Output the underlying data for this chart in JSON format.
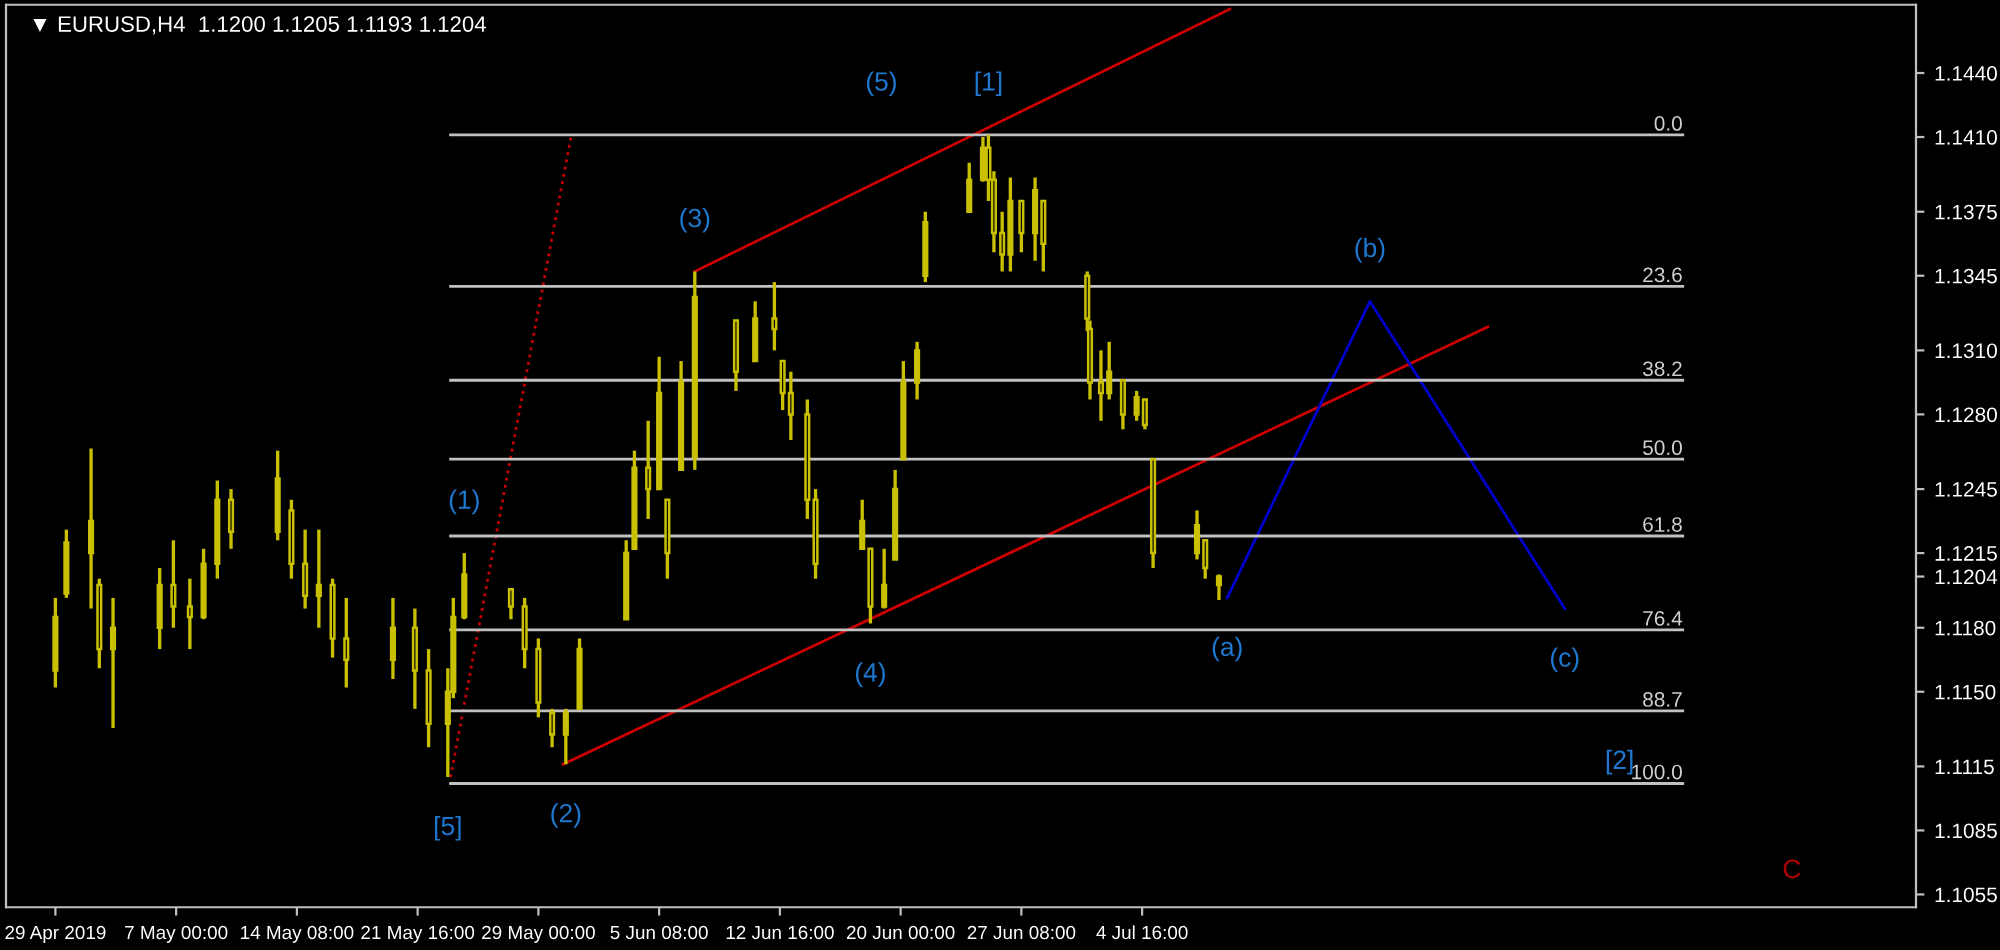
{
  "chart_data": {
    "type": "candlestick",
    "title": "▼ EURUSD,H4  1.1200 1.1205 1.1193 1.1204",
    "color": "#c8c000",
    "x": [
      "2019-04-29T16:00",
      "2019-04-30T08:00",
      "2019-05-01T20:00",
      "2019-05-02T08:00",
      "2019-05-03T04:00",
      "2019-05-06T00:00",
      "2019-05-06T20:00",
      "2019-05-07T20:00",
      "2019-05-08T16:00",
      "2019-05-09T12:00",
      "2019-05-10T08:00",
      "2019-05-13T04:00",
      "2019-05-14T00:00",
      "2019-05-14T20:00",
      "2019-05-15T16:00",
      "2019-05-16T12:00",
      "2019-05-17T08:00",
      "2019-05-20T04:00",
      "2019-05-21T12:00",
      "2019-05-22T08:00",
      "2019-05-23T12:00",
      "2019-05-23T20:00",
      "2019-05-24T12:00",
      "2019-05-27T08:00",
      "2019-05-28T04:00",
      "2019-05-29T00:00",
      "2019-05-29T20:00",
      "2019-05-30T16:00",
      "2019-05-31T12:00",
      "2019-06-03T08:00",
      "2019-06-03T20:00",
      "2019-06-04T16:00",
      "2019-06-05T08:00",
      "2019-06-05T20:00",
      "2019-06-06T16:00",
      "2019-06-07T12:00",
      "2019-06-10T00:00",
      "2019-06-11T04:00",
      "2019-06-12T08:00",
      "2019-06-12T20:00",
      "2019-06-13T08:00",
      "2019-06-14T08:00",
      "2019-06-14T20:00",
      "2019-06-17T16:00",
      "2019-06-18T04:00",
      "2019-06-19T00:00",
      "2019-06-19T16:00",
      "2019-06-20T04:00",
      "2019-06-21T00:00",
      "2019-06-21T12:00",
      "2019-06-24T04:00",
      "2019-06-25T00:00",
      "2019-06-25T08:00",
      "2019-06-25T16:00",
      "2019-06-26T04:00",
      "2019-06-26T16:00",
      "2019-06-27T08:00",
      "2019-06-28T04:00",
      "2019-06-28T16:00",
      "2019-07-01T08:00",
      "2019-07-01T12:00",
      "2019-07-02T04:00",
      "2019-07-02T16:00",
      "2019-07-03T12:00",
      "2019-07-04T08:00",
      "2019-07-04T20:00",
      "2019-07-05T08:00",
      "2019-07-08T00:00",
      "2019-07-08T12:00",
      "2019-07-09T08:00"
    ],
    "ohlc": [
      [
        1.116,
        1.1194,
        1.1152,
        1.1185
      ],
      [
        1.1196,
        1.1226,
        1.1194,
        1.122
      ],
      [
        1.1215,
        1.1264,
        1.1189,
        1.123
      ],
      [
        1.12,
        1.1203,
        1.1161,
        1.117
      ],
      [
        1.117,
        1.1194,
        1.1133,
        1.118
      ],
      [
        1.118,
        1.1208,
        1.117,
        1.12
      ],
      [
        1.12,
        1.1221,
        1.118,
        1.119
      ],
      [
        1.119,
        1.1203,
        1.117,
        1.1185
      ],
      [
        1.1185,
        1.1217,
        1.1184,
        1.121
      ],
      [
        1.121,
        1.1249,
        1.1203,
        1.124
      ],
      [
        1.124,
        1.1245,
        1.1217,
        1.1225
      ],
      [
        1.1225,
        1.1263,
        1.1221,
        1.125
      ],
      [
        1.1235,
        1.124,
        1.1203,
        1.121
      ],
      [
        1.121,
        1.1226,
        1.1189,
        1.1195
      ],
      [
        1.1195,
        1.1226,
        1.118,
        1.12
      ],
      [
        1.12,
        1.1203,
        1.1166,
        1.1175
      ],
      [
        1.1175,
        1.1194,
        1.1152,
        1.1165
      ],
      [
        1.1165,
        1.1194,
        1.1156,
        1.118
      ],
      [
        1.118,
        1.1189,
        1.1142,
        1.116
      ],
      [
        1.116,
        1.117,
        1.1124,
        1.1135
      ],
      [
        1.1135,
        1.1161,
        1.111,
        1.115
      ],
      [
        1.115,
        1.1194,
        1.1147,
        1.1185
      ],
      [
        1.1185,
        1.1215,
        1.1184,
        1.1205
      ],
      [
        1.1198,
        1.1198,
        1.1184,
        1.119
      ],
      [
        1.119,
        1.1194,
        1.1161,
        1.117
      ],
      [
        1.117,
        1.1175,
        1.1138,
        1.1145
      ],
      [
        1.114,
        1.1142,
        1.1124,
        1.113
      ],
      [
        1.113,
        1.1142,
        1.1116,
        1.114
      ],
      [
        1.1142,
        1.1175,
        1.1142,
        1.117
      ],
      [
        1.1184,
        1.1221,
        1.1184,
        1.1215
      ],
      [
        1.1217,
        1.1263,
        1.1217,
        1.1255
      ],
      [
        1.1255,
        1.1277,
        1.1231,
        1.1245
      ],
      [
        1.1245,
        1.1307,
        1.1245,
        1.129
      ],
      [
        1.124,
        1.124,
        1.1203,
        1.1215
      ],
      [
        1.1254,
        1.1305,
        1.1254,
        1.1295
      ],
      [
        1.126,
        1.1347,
        1.1254,
        1.1335
      ],
      [
        1.1324,
        1.1324,
        1.1291,
        1.13
      ],
      [
        1.1305,
        1.1333,
        1.1305,
        1.1325
      ],
      [
        1.1325,
        1.1342,
        1.131,
        1.132
      ],
      [
        1.1305,
        1.1305,
        1.1282,
        1.129
      ],
      [
        1.129,
        1.13,
        1.1268,
        1.128
      ],
      [
        1.128,
        1.1287,
        1.1231,
        1.124
      ],
      [
        1.124,
        1.1245,
        1.1203,
        1.121
      ],
      [
        1.1217,
        1.124,
        1.1217,
        1.123
      ],
      [
        1.1217,
        1.1217,
        1.1182,
        1.119
      ],
      [
        1.119,
        1.1217,
        1.1189,
        1.12
      ],
      [
        1.1212,
        1.1254,
        1.1212,
        1.1245
      ],
      [
        1.1259,
        1.1305,
        1.1259,
        1.1295
      ],
      [
        1.1295,
        1.1314,
        1.1287,
        1.131
      ],
      [
        1.1345,
        1.1375,
        1.1342,
        1.137
      ],
      [
        1.1375,
        1.1398,
        1.1375,
        1.139
      ],
      [
        1.139,
        1.141,
        1.1389,
        1.1405
      ],
      [
        1.1405,
        1.1411,
        1.138,
        1.139
      ],
      [
        1.139,
        1.1394,
        1.1356,
        1.1365
      ],
      [
        1.1365,
        1.1375,
        1.1347,
        1.1355
      ],
      [
        1.1355,
        1.1391,
        1.1347,
        1.138
      ],
      [
        1.138,
        1.138,
        1.1356,
        1.1365
      ],
      [
        1.1365,
        1.1391,
        1.1352,
        1.1385
      ],
      [
        1.138,
        1.138,
        1.1347,
        1.136
      ],
      [
        1.1345,
        1.1347,
        1.1319,
        1.1325
      ],
      [
        1.132,
        1.1324,
        1.1287,
        1.1295
      ],
      [
        1.1295,
        1.131,
        1.1277,
        1.129
      ],
      [
        1.129,
        1.1314,
        1.1287,
        1.13
      ],
      [
        1.1296,
        1.1296,
        1.1273,
        1.128
      ],
      [
        1.128,
        1.1291,
        1.1277,
        1.1288
      ],
      [
        1.1287,
        1.1287,
        1.1273,
        1.1275
      ],
      [
        1.1259,
        1.1259,
        1.1208,
        1.1215
      ],
      [
        1.1215,
        1.1235,
        1.1212,
        1.1228
      ],
      [
        1.1221,
        1.1221,
        1.1203,
        1.1208
      ],
      [
        1.12,
        1.1205,
        1.1193,
        1.1204
      ]
    ],
    "series": [
      {
        "type": "line",
        "color": "#cc0000",
        "line_style": "solid",
        "x": [
          "2019-06-07T12:00",
          "2019-07-10T00:00"
        ],
        "values": [
          1.1347,
          1.147
        ]
      },
      {
        "type": "line",
        "color": "#cc0000",
        "line_style": "solid",
        "x": [
          "2019-05-30T12:00",
          "2019-07-25T16:00"
        ],
        "values": [
          1.1116,
          1.1321
        ]
      },
      {
        "type": "line",
        "color": "#cc0000",
        "line_style": "dotted",
        "x": [
          "2019-05-23T16:00",
          "2019-05-31T00:00"
        ],
        "values": [
          1.111,
          1.1411
        ]
      },
      {
        "type": "line",
        "color": "#0000cc",
        "line_style": "solid",
        "x": [
          "2019-07-09T20:00",
          "2019-07-18T12:00",
          "2019-07-30T08:00"
        ],
        "values": [
          1.1194,
          1.1333,
          1.1189
        ]
      },
      {
        "type": "line",
        "name": "0.0",
        "color": "#c0c0c0",
        "line_style": "solid",
        "x": [
          "2019-05-23T16:00",
          "2019-08-06T12:00"
        ],
        "values": [
          1.1411,
          1.1411
        ]
      },
      {
        "type": "line",
        "name": "23.6",
        "color": "#c0c0c0",
        "line_style": "solid",
        "x": [
          "2019-05-23T16:00",
          "2019-08-06T12:00"
        ],
        "values": [
          1.134,
          1.134
        ]
      },
      {
        "type": "line",
        "name": "38.2",
        "color": "#c0c0c0",
        "line_style": "solid",
        "x": [
          "2019-05-23T16:00",
          "2019-08-06T12:00"
        ],
        "values": [
          1.1296,
          1.1296
        ]
      },
      {
        "type": "line",
        "name": "50.0",
        "color": "#c0c0c0",
        "line_style": "solid",
        "x": [
          "2019-05-23T16:00",
          "2019-08-06T12:00"
        ],
        "values": [
          1.1259,
          1.1259
        ]
      },
      {
        "type": "line",
        "name": "61.8",
        "color": "#c0c0c0",
        "line_style": "solid",
        "x": [
          "2019-05-23T16:00",
          "2019-08-06T12:00"
        ],
        "values": [
          1.1223,
          1.1223
        ]
      },
      {
        "type": "line",
        "name": "76.4",
        "color": "#c0c0c0",
        "line_style": "solid",
        "x": [
          "2019-05-23T16:00",
          "2019-08-06T12:00"
        ],
        "values": [
          1.1179,
          1.1179
        ]
      },
      {
        "type": "line",
        "name": "88.7",
        "color": "#c0c0c0",
        "line_style": "solid",
        "x": [
          "2019-05-23T16:00",
          "2019-08-06T12:00"
        ],
        "values": [
          1.1141,
          1.1141
        ]
      },
      {
        "type": "line",
        "name": "100.0",
        "color": "#c0c0c0",
        "line_style": "solid",
        "x": [
          "2019-05-23T16:00",
          "2019-08-06T12:00"
        ],
        "values": [
          1.1107,
          1.1107
        ]
      }
    ],
    "annotations": [
      {
        "text": "(1)",
        "x": "2019-05-24T12:00",
        "y": 1.1215
      },
      {
        "text": "(2)",
        "x": "2019-05-30T16:00",
        "y": 1.1116
      },
      {
        "text": "(3)",
        "x": "2019-06-07T12:00",
        "y": 1.1347
      },
      {
        "text": "(4)",
        "x": "2019-06-18T04:00",
        "y": 1.1182
      },
      {
        "text": "(5)",
        "x": "2019-06-18T20:00",
        "y": 1.1411
      },
      {
        "text": "[1]",
        "x": "2019-06-25T08:00",
        "y": 1.1411
      },
      {
        "text": "[5]",
        "x": "2019-05-23T12:00",
        "y": 1.111
      },
      {
        "text": "(a)",
        "x": "2019-07-09T20:00",
        "y": 1.1194
      },
      {
        "text": "(b)",
        "x": "2019-07-18T12:00",
        "y": 1.1333
      },
      {
        "text": "(c)",
        "x": "2019-07-30T08:00",
        "y": 1.1189
      },
      {
        "text": "[2]",
        "x": "2019-08-02T16:00",
        "y": 1.1141
      },
      "C"
    ],
    "xlim": [
      "2019-04-26T16:00",
      "2019-08-20T16:00"
    ],
    "xticks": [
      {
        "value": "2019-04-29T16:00",
        "label": "29 Apr 2019"
      },
      {
        "value": "2019-05-07T00:00",
        "label": "7 May 00:00"
      },
      {
        "value": "2019-05-14T08:00",
        "label": "14 May 08:00"
      },
      {
        "value": "2019-05-21T16:00",
        "label": "21 May 16:00"
      },
      {
        "value": "2019-05-29T00:00",
        "label": "29 May 00:00"
      },
      {
        "value": "2019-06-05T08:00",
        "label": "5 Jun 08:00"
      },
      {
        "value": "2019-06-12T16:00",
        "label": "12 Jun 16:00"
      },
      {
        "value": "2019-06-20T00:00",
        "label": "20 Jun 00:00"
      },
      {
        "value": "2019-06-27T08:00",
        "label": "27 Jun 08:00"
      },
      {
        "value": "2019-07-04T16:00",
        "label": "4 Jul 16:00"
      }
    ],
    "ylim": [
      1.1049,
      1.1472
    ],
    "yticks": [
      {
        "value": 1.1055,
        "label": "1.1055"
      },
      {
        "value": 1.1085,
        "label": "1.1085"
      },
      {
        "value": 1.1115,
        "label": "1.1115"
      },
      {
        "value": 1.115,
        "label": "1.1150"
      },
      {
        "value": 1.118,
        "label": "1.1180"
      },
      {
        "value": 1.1204,
        "label": "1.1204"
      },
      {
        "value": 1.1215,
        "label": "1.1215"
      },
      {
        "value": 1.1245,
        "label": "1.1245"
      },
      {
        "value": 1.128,
        "label": "1.1280"
      },
      {
        "value": 1.131,
        "label": "1.1310"
      },
      {
        "value": 1.1345,
        "label": "1.1345"
      },
      {
        "value": 1.1375,
        "label": "1.1375"
      },
      {
        "value": 1.141,
        "label": "1.1410"
      },
      {
        "value": 1.144,
        "label": "1.1440"
      }
    ],
    "grid": false,
    "legend": false
  }
}
